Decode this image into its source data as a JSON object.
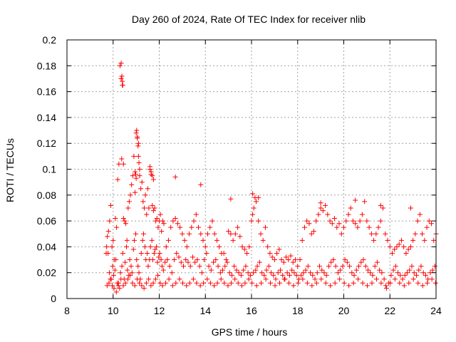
{
  "chart_data": {
    "type": "scatter",
    "title": "Day 260 of 2024, Rate Of TEC Index for receiver nlib",
    "xlabel": "GPS time / hours",
    "ylabel": "ROTI / TECUs",
    "xlim": [
      8,
      24
    ],
    "ylim": [
      0,
      0.2
    ],
    "xticks": [
      8,
      10,
      12,
      14,
      16,
      18,
      20,
      22,
      24
    ],
    "yticks": [
      0,
      0.02,
      0.04,
      0.06,
      0.08,
      0.1,
      0.12,
      0.14,
      0.16,
      0.18,
      0.2
    ],
    "xtick_labels": [
      "8",
      "10",
      "12",
      "14",
      "16",
      "18",
      "20",
      "22",
      "24"
    ],
    "ytick_labels": [
      "0",
      "0.02",
      "0.04",
      "0.06",
      "0.08",
      "0.1",
      "0.12",
      "0.14",
      "0.16",
      "0.18",
      "0.2"
    ],
    "grid": true,
    "marker": "+",
    "series": [
      {
        "name": "ROTI",
        "color": "#ff0000",
        "x": [
          9.7,
          9.75,
          9.8,
          9.85,
          9.9,
          9.95,
          10.0,
          10.05,
          10.1,
          10.15,
          10.2,
          10.25,
          10.3,
          10.35,
          10.4,
          10.45,
          10.5,
          10.55,
          10.6,
          10.65,
          10.7,
          10.75,
          10.8,
          10.85,
          10.9,
          10.95,
          11.0,
          11.05,
          11.1,
          11.15,
          11.2,
          11.25,
          11.3,
          11.35,
          11.4,
          11.45,
          11.5,
          11.55,
          11.6,
          11.65,
          11.7,
          11.75,
          11.8,
          11.85,
          11.9,
          11.95,
          12.0,
          12.05,
          12.1,
          12.15,
          12.2,
          12.3,
          12.4,
          12.5,
          12.6,
          12.7,
          12.8,
          12.9,
          13.0,
          13.1,
          13.2,
          13.3,
          13.4,
          13.5,
          13.6,
          13.7,
          13.8,
          13.9,
          14.0,
          14.1,
          14.2,
          14.3,
          14.4,
          14.5,
          14.6,
          14.7,
          14.8,
          14.9,
          15.0,
          15.1,
          15.2,
          15.3,
          15.4,
          15.5,
          15.6,
          15.7,
          15.8,
          15.9,
          16.0,
          16.05,
          16.1,
          16.15,
          16.2,
          16.3,
          16.4,
          16.5,
          16.6,
          16.7,
          16.8,
          16.9,
          17.0,
          17.1,
          17.2,
          17.3,
          17.4,
          17.5,
          17.6,
          17.7,
          17.8,
          17.9,
          18.0,
          18.1,
          18.2,
          18.3,
          18.4,
          18.5,
          18.6,
          18.7,
          18.8,
          18.9,
          19.0,
          19.1,
          19.2,
          19.3,
          19.4,
          19.5,
          19.6,
          19.7,
          19.8,
          19.9,
          20.0,
          20.1,
          20.2,
          20.3,
          20.4,
          20.5,
          20.6,
          20.7,
          20.8,
          20.9,
          21.0,
          21.1,
          21.2,
          21.3,
          21.4,
          21.5,
          21.6,
          21.7,
          21.8,
          21.9,
          22.0,
          22.1,
          22.2,
          22.3,
          22.4,
          22.5,
          22.6,
          22.7,
          22.8,
          22.9,
          23.0,
          23.1,
          23.2,
          23.3,
          23.4,
          23.5,
          23.6,
          23.7,
          23.8,
          23.9,
          24.0,
          9.72,
          9.78,
          9.84,
          9.92,
          9.98,
          10.02,
          10.08,
          10.12,
          10.18,
          10.22,
          10.28,
          10.32,
          10.38,
          10.42,
          10.48,
          10.52,
          10.58,
          10.62,
          10.68,
          10.72,
          10.78,
          10.82,
          10.88,
          10.92,
          10.98,
          11.02,
          11.08,
          11.12,
          11.18,
          11.22,
          11.28,
          11.32,
          11.38,
          11.42,
          11.48,
          11.52,
          11.58,
          11.62,
          11.68,
          11.72,
          11.78,
          11.82,
          11.88,
          11.92,
          11.98,
          12.02,
          12.08,
          12.12,
          12.18,
          12.25,
          12.35,
          12.45,
          12.55,
          12.65,
          12.75,
          12.85,
          12.95,
          13.05,
          13.15,
          13.25,
          13.35,
          13.45,
          13.55,
          13.65,
          13.75,
          13.85,
          13.95,
          14.05,
          14.15,
          14.25,
          14.35,
          14.45,
          14.55,
          14.65,
          14.75,
          14.85,
          14.95,
          15.05,
          15.15,
          15.25,
          15.35,
          15.45,
          15.55,
          15.65,
          15.75,
          15.85,
          15.95,
          16.08,
          16.18,
          16.25,
          16.35,
          16.45,
          16.55,
          16.65,
          16.75,
          16.85,
          16.95,
          17.05,
          17.15,
          17.25,
          17.35,
          17.45,
          17.55,
          17.65,
          17.75,
          17.85,
          17.95,
          18.05,
          18.15,
          18.25,
          18.35,
          18.45,
          18.55,
          18.65,
          18.75,
          18.85,
          18.95,
          19.05,
          19.15,
          19.25,
          19.35,
          19.45,
          19.55,
          19.65,
          19.75,
          19.85,
          19.95,
          20.05,
          20.15,
          20.25,
          20.35,
          20.45,
          20.55,
          20.65,
          20.75,
          20.85,
          20.95,
          21.05,
          21.15,
          21.25,
          21.35,
          21.45,
          21.55,
          21.65,
          21.75,
          21.85,
          21.95,
          22.05,
          22.15,
          22.25,
          22.35,
          22.45,
          22.55,
          22.65,
          22.75,
          22.85,
          22.95,
          23.05,
          23.15,
          23.25,
          23.35,
          23.45,
          23.55,
          23.65,
          23.75,
          23.85,
          23.95,
          9.74,
          9.82,
          9.88,
          9.96,
          10.04,
          10.14,
          10.24,
          10.34,
          10.44,
          10.54,
          10.64,
          10.74,
          10.84,
          10.94,
          11.04,
          11.14,
          11.24,
          11.34,
          11.44,
          11.54,
          11.64,
          11.74,
          11.84,
          11.94,
          12.04,
          12.14,
          12.28,
          12.42,
          12.58,
          12.72,
          12.88,
          13.02,
          13.18,
          13.32,
          13.48,
          13.62,
          13.78,
          13.92,
          14.08,
          14.22,
          14.38,
          14.52,
          14.68,
          14.82,
          14.98,
          15.12,
          15.28,
          15.42,
          15.58,
          15.72,
          15.88,
          16.02,
          16.22,
          16.42,
          16.62,
          16.82,
          17.02,
          17.22,
          17.42,
          17.62,
          17.82,
          18.02,
          18.22,
          18.42,
          18.62,
          18.82,
          19.02,
          19.22,
          19.42,
          19.62,
          19.82,
          20.02,
          20.22,
          20.42,
          20.62,
          20.82,
          21.02,
          21.22,
          21.42,
          21.62,
          21.82,
          22.02,
          22.22,
          22.42,
          22.62,
          22.82,
          23.02,
          23.22,
          23.42,
          23.62,
          23.82,
          23.98,
          10.35,
          10.38,
          10.4,
          10.42,
          10.37,
          10.45,
          11.02,
          11.05,
          11.08,
          11.1,
          11.12,
          11.15,
          10.95,
          10.98,
          11.0,
          11.6,
          11.65,
          11.7,
          11.75,
          12.7,
          13.8,
          15.1,
          16.05,
          16.3,
          22.9,
          21.6,
          20.5,
          19.0
        ],
        "y": [
          0.035,
          0.048,
          0.052,
          0.06,
          0.072,
          0.04,
          0.045,
          0.03,
          0.062,
          0.055,
          0.092,
          0.104,
          0.18,
          0.17,
          0.165,
          0.062,
          0.06,
          0.058,
          0.045,
          0.07,
          0.075,
          0.08,
          0.088,
          0.095,
          0.11,
          0.082,
          0.128,
          0.125,
          0.12,
          0.095,
          0.085,
          0.09,
          0.075,
          0.07,
          0.08,
          0.065,
          0.085,
          0.07,
          0.1,
          0.096,
          0.072,
          0.068,
          0.07,
          0.06,
          0.062,
          0.055,
          0.06,
          0.065,
          0.052,
          0.06,
          0.058,
          0.04,
          0.045,
          0.055,
          0.06,
          0.062,
          0.058,
          0.055,
          0.05,
          0.045,
          0.04,
          0.05,
          0.055,
          0.06,
          0.065,
          0.055,
          0.05,
          0.045,
          0.04,
          0.05,
          0.055,
          0.06,
          0.05,
          0.045,
          0.04,
          0.035,
          0.035,
          0.03,
          0.052,
          0.05,
          0.045,
          0.05,
          0.055,
          0.048,
          0.04,
          0.038,
          0.035,
          0.04,
          0.06,
          0.065,
          0.07,
          0.078,
          0.075,
          0.06,
          0.05,
          0.045,
          0.055,
          0.04,
          0.035,
          0.032,
          0.03,
          0.035,
          0.038,
          0.03,
          0.028,
          0.032,
          0.03,
          0.033,
          0.028,
          0.03,
          0.025,
          0.03,
          0.045,
          0.055,
          0.06,
          0.058,
          0.05,
          0.052,
          0.06,
          0.065,
          0.07,
          0.068,
          0.072,
          0.065,
          0.06,
          0.058,
          0.062,
          0.055,
          0.058,
          0.05,
          0.055,
          0.06,
          0.065,
          0.07,
          0.06,
          0.058,
          0.055,
          0.06,
          0.065,
          0.075,
          0.06,
          0.055,
          0.05,
          0.045,
          0.05,
          0.055,
          0.06,
          0.07,
          0.05,
          0.045,
          0.04,
          0.035,
          0.038,
          0.04,
          0.042,
          0.045,
          0.04,
          0.035,
          0.038,
          0.04,
          0.045,
          0.05,
          0.06,
          0.065,
          0.05,
          0.045,
          0.055,
          0.06,
          0.058,
          0.045,
          0.05,
          0.04,
          0.035,
          0.02,
          0.015,
          0.025,
          0.018,
          0.022,
          0.03,
          0.012,
          0.01,
          0.008,
          0.02,
          0.025,
          0.035,
          0.015,
          0.028,
          0.04,
          0.022,
          0.018,
          0.03,
          0.025,
          0.02,
          0.038,
          0.045,
          0.05,
          0.03,
          0.025,
          0.02,
          0.015,
          0.035,
          0.045,
          0.05,
          0.04,
          0.03,
          0.035,
          0.025,
          0.03,
          0.04,
          0.045,
          0.03,
          0.035,
          0.038,
          0.04,
          0.028,
          0.032,
          0.035,
          0.03,
          0.025,
          0.022,
          0.028,
          0.03,
          0.025,
          0.02,
          0.03,
          0.035,
          0.032,
          0.028,
          0.025,
          0.03,
          0.028,
          0.025,
          0.032,
          0.028,
          0.03,
          0.025,
          0.02,
          0.03,
          0.035,
          0.025,
          0.022,
          0.028,
          0.03,
          0.025,
          0.02,
          0.022,
          0.025,
          0.028,
          0.02,
          0.018,
          0.025,
          0.022,
          0.02,
          0.018,
          0.022,
          0.025,
          0.02,
          0.018,
          0.02,
          0.022,
          0.025,
          0.028,
          0.02,
          0.018,
          0.022,
          0.025,
          0.02,
          0.018,
          0.015,
          0.02,
          0.022,
          0.018,
          0.015,
          0.02,
          0.018,
          0.022,
          0.02,
          0.018,
          0.015,
          0.018,
          0.02,
          0.022,
          0.025,
          0.02,
          0.018,
          0.015,
          0.02,
          0.025,
          0.022,
          0.02,
          0.018,
          0.025,
          0.028,
          0.03,
          0.025,
          0.02,
          0.022,
          0.025,
          0.03,
          0.028,
          0.025,
          0.02,
          0.018,
          0.022,
          0.025,
          0.028,
          0.03,
          0.025,
          0.022,
          0.02,
          0.018,
          0.025,
          0.028,
          0.022,
          0.02,
          0.015,
          0.008,
          0.012,
          0.018,
          0.022,
          0.025,
          0.02,
          0.018,
          0.015,
          0.018,
          0.02,
          0.022,
          0.025,
          0.02,
          0.018,
          0.022,
          0.025,
          0.02,
          0.018,
          0.015,
          0.02,
          0.022,
          0.025,
          0.01,
          0.012,
          0.015,
          0.01,
          0.008,
          0.005,
          0.012,
          0.015,
          0.01,
          0.012,
          0.015,
          0.018,
          0.012,
          0.01,
          0.015,
          0.012,
          0.01,
          0.008,
          0.012,
          0.015,
          0.01,
          0.012,
          0.015,
          0.018,
          0.012,
          0.01,
          0.012,
          0.015,
          0.01,
          0.012,
          0.015,
          0.012,
          0.01,
          0.012,
          0.015,
          0.012,
          0.01,
          0.012,
          0.015,
          0.012,
          0.01,
          0.012,
          0.015,
          0.012,
          0.01,
          0.012,
          0.015,
          0.012,
          0.01,
          0.012,
          0.015,
          0.012,
          0.01,
          0.012,
          0.015,
          0.012,
          0.01,
          0.012,
          0.015,
          0.012,
          0.01,
          0.012,
          0.015,
          0.012,
          0.01,
          0.012,
          0.015,
          0.012,
          0.01,
          0.012,
          0.015,
          0.012,
          0.01,
          0.012,
          0.015,
          0.012,
          0.01,
          0.012,
          0.015,
          0.012,
          0.01,
          0.012,
          0.015,
          0.012,
          0.01,
          0.012,
          0.015,
          0.012,
          0.01,
          0.012,
          0.015,
          0.012,
          0.182,
          0.172,
          0.168,
          0.165,
          0.108,
          0.104,
          0.13,
          0.124,
          0.118,
          0.11,
          0.105,
          0.1,
          0.098,
          0.096,
          0.093,
          0.102,
          0.098,
          0.095,
          0.092,
          0.094,
          0.088,
          0.077,
          0.081,
          0.078,
          0.07,
          0.072,
          0.076,
          0.074
        ]
      }
    ]
  }
}
